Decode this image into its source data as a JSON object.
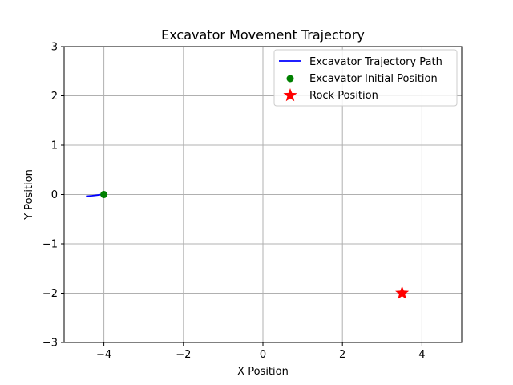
{
  "chart_data": {
    "type": "scatter",
    "title": "Excavator Movement Trajectory",
    "xlabel": "X Position",
    "ylabel": "Y Position",
    "xlim": [
      -5,
      5
    ],
    "ylim": [
      -3,
      3
    ],
    "xticks": [
      -4,
      -2,
      0,
      2,
      4
    ],
    "yticks": [
      -3,
      -2,
      -1,
      0,
      1,
      2,
      3
    ],
    "xtick_labels": [
      "−4",
      "−2",
      "0",
      "2",
      "4"
    ],
    "ytick_labels": [
      "−3",
      "−2",
      "−1",
      "0",
      "1",
      "2",
      "3"
    ],
    "grid": true,
    "legend_position": "top-right",
    "series": [
      {
        "name": "Excavator Trajectory Path",
        "kind": "line",
        "color": "#0000ff",
        "x": [
          -4.0,
          -4.1,
          -4.2,
          -4.3,
          -4.45
        ],
        "y": [
          0.0,
          -0.005,
          -0.015,
          -0.025,
          -0.035
        ]
      },
      {
        "name": "Excavator Initial Position",
        "kind": "point",
        "marker": "circle",
        "color": "#008000",
        "x": [
          -4.0
        ],
        "y": [
          0.0
        ]
      },
      {
        "name": "Rock Position",
        "kind": "point",
        "marker": "star",
        "color": "#ff0000",
        "x": [
          3.5
        ],
        "y": [
          -2.0
        ]
      }
    ]
  }
}
